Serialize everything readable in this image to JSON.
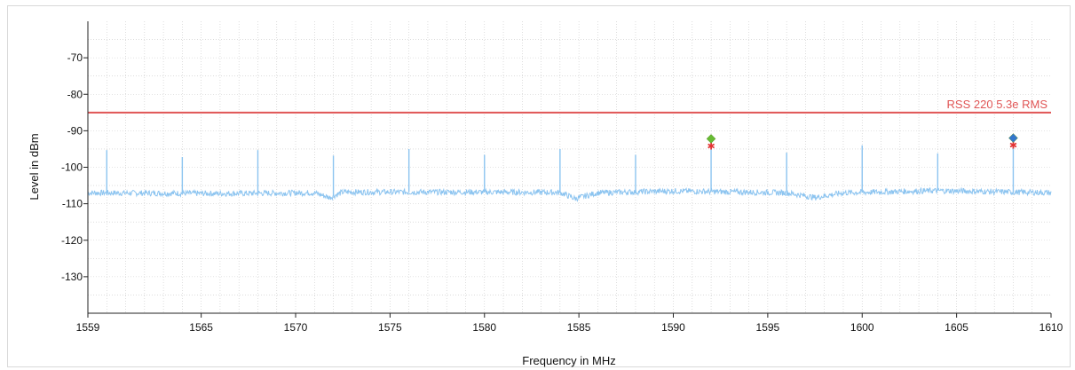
{
  "chart_data": {
    "type": "line",
    "title": "",
    "xlabel": "Frequency in MHz",
    "ylabel": "Level in dBm",
    "xlim": [
      1559,
      1610
    ],
    "ylim": [
      -140,
      -60
    ],
    "x_ticks": [
      1559,
      1565,
      1570,
      1575,
      1580,
      1585,
      1590,
      1595,
      1600,
      1605,
      1610
    ],
    "y_ticks": [
      -70,
      -80,
      -90,
      -100,
      -110,
      -120,
      -130
    ],
    "grid": true,
    "noise_floor": [
      [
        1559,
        -107
      ],
      [
        1566,
        -107.2
      ],
      [
        1571,
        -107
      ],
      [
        1571.8,
        -108.3
      ],
      [
        1572.5,
        -106.8
      ],
      [
        1580,
        -106.8
      ],
      [
        1584,
        -106.9
      ],
      [
        1584.8,
        -108.6
      ],
      [
        1586,
        -107
      ],
      [
        1590,
        -106.5
      ],
      [
        1596,
        -107
      ],
      [
        1597.5,
        -108.3
      ],
      [
        1599,
        -107
      ],
      [
        1604,
        -106.4
      ],
      [
        1610,
        -107
      ]
    ],
    "spikes": [
      {
        "x": 1560.0,
        "y": -95.3
      },
      {
        "x": 1564.0,
        "y": -97.2
      },
      {
        "x": 1568.0,
        "y": -95.3
      },
      {
        "x": 1572.0,
        "y": -96.8
      },
      {
        "x": 1576.0,
        "y": -95.0
      },
      {
        "x": 1580.0,
        "y": -96.6
      },
      {
        "x": 1584.0,
        "y": -95.0
      },
      {
        "x": 1588.0,
        "y": -96.6
      },
      {
        "x": 1592.0,
        "y": -93.0
      },
      {
        "x": 1596.0,
        "y": -96.0
      },
      {
        "x": 1600.0,
        "y": -94.0
      },
      {
        "x": 1604.0,
        "y": -96.2
      },
      {
        "x": 1608.0,
        "y": -93.0
      }
    ],
    "limit_line": {
      "label": "RSS 220 5.3e RMS",
      "value": -85,
      "color": "#e05555"
    },
    "markers": [
      {
        "x": 1592.0,
        "y": -92.2,
        "color": "#66bb33",
        "star_color": "#e33333"
      },
      {
        "x": 1608.0,
        "y": -92.0,
        "color": "#3377cc",
        "star_color": "#e33333"
      }
    ],
    "series_color": "#8cc4f0"
  }
}
